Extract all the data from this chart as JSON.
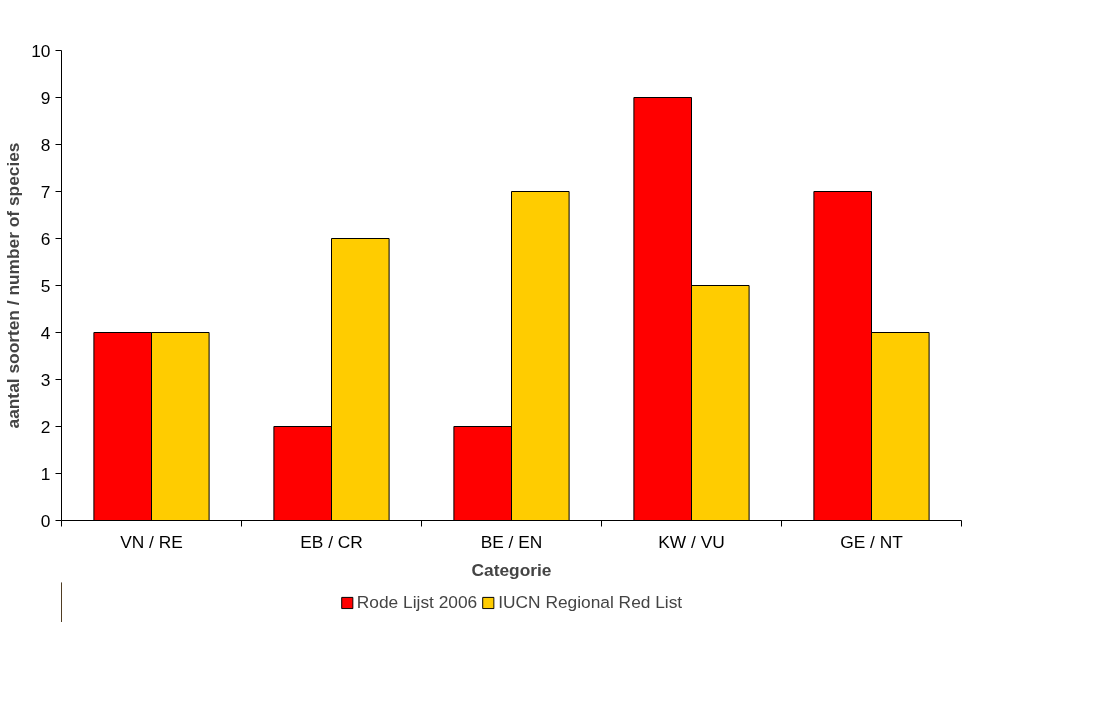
{
  "chart_data": {
    "type": "bar",
    "xlabel": "Categorie",
    "ylabel": "aantal soorten / number of species",
    "categories": [
      "VN / RE",
      "EB / CR",
      "BE / EN",
      "KW / VU",
      "GE / NT"
    ],
    "series": [
      {
        "name": "Rode Lijst 2006",
        "color": "#ff0000",
        "values": [
          4,
          2,
          2,
          9,
          7
        ]
      },
      {
        "name": "IUCN Regional Red List",
        "color": "#ffcc00",
        "values": [
          4,
          6,
          7,
          5,
          4
        ]
      }
    ],
    "ylim": [
      0,
      10
    ],
    "yticks": [
      0,
      1,
      2,
      3,
      4,
      5,
      6,
      7,
      8,
      9,
      10
    ],
    "grid": false,
    "legend": "bottom"
  }
}
